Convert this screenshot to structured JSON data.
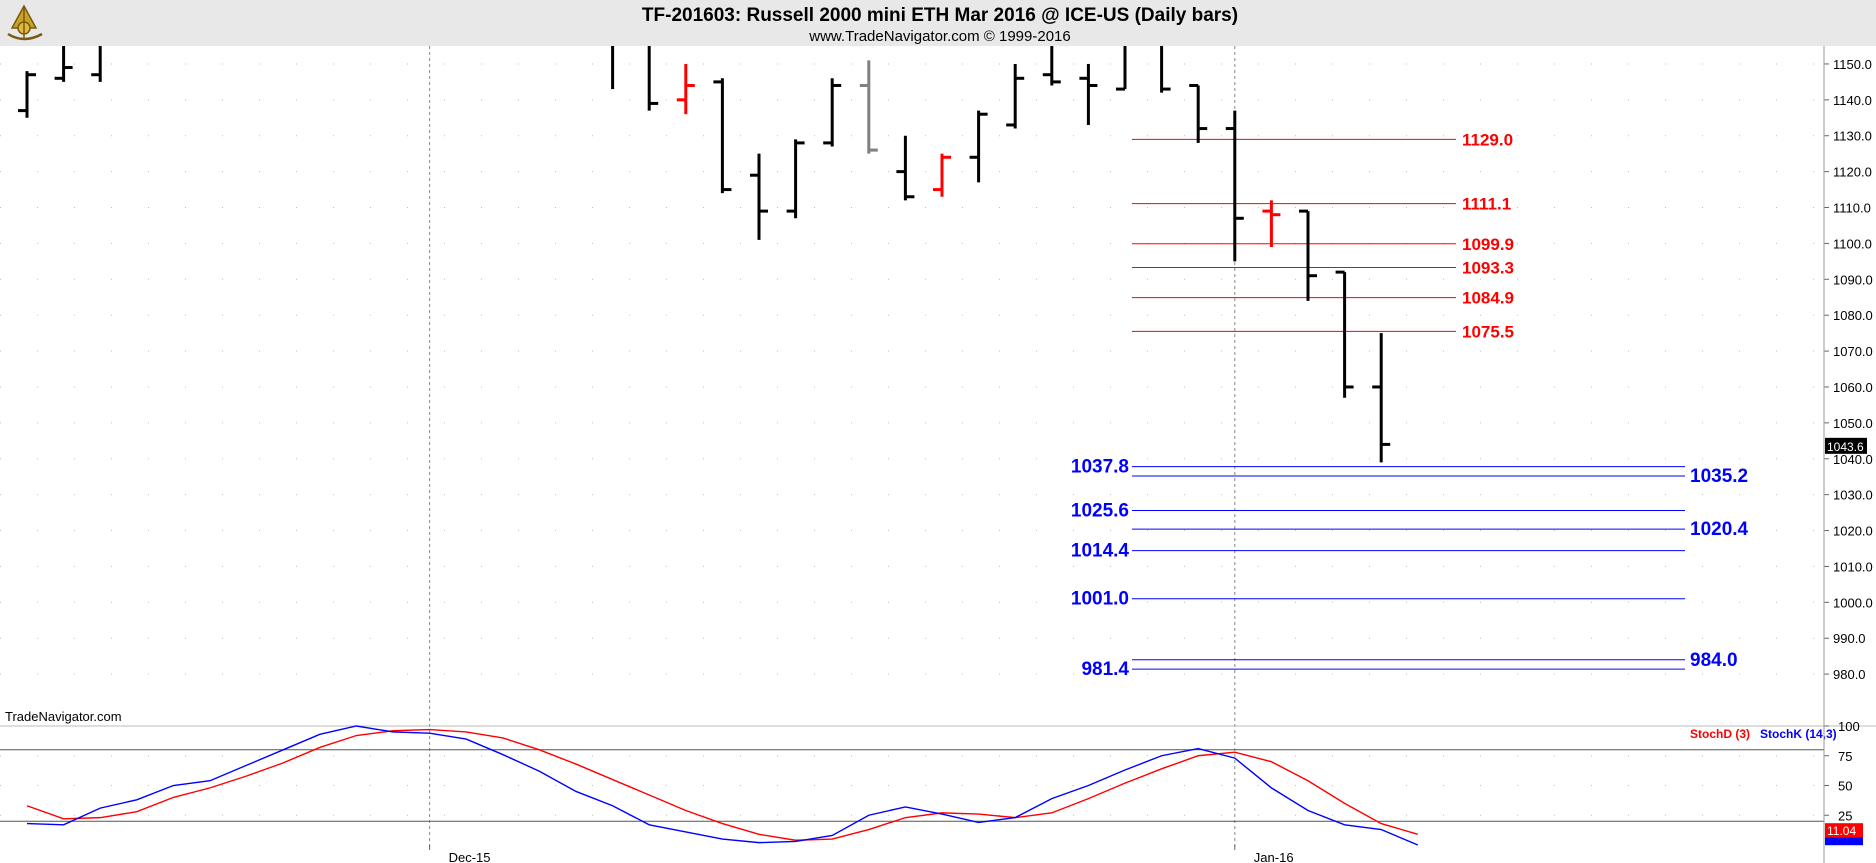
{
  "header": {
    "title": "TF-201603:  Russell 2000 mini ETH Mar 2016 @ ICE-US  (Daily bars)",
    "subtitle": "www.TradeNavigator.com © 1999-2016"
  },
  "watermark": "TradeNavigator.com",
  "colors": {
    "bar_default": "#000000",
    "bar_red": "#ff0000",
    "bar_gray": "#808080",
    "level_red": "#ff0000",
    "level_blue": "#0000ff",
    "stoch_d": "#ff0000",
    "stoch_k": "#0000ff",
    "header_bg": "#e8e8e8"
  },
  "chart_data": [
    {
      "type": "ohlc",
      "ylim": [
        970,
        1155
      ],
      "y_ticks": [
        980,
        990,
        1000,
        1010,
        1020,
        1030,
        1040,
        1050,
        1060,
        1070,
        1080,
        1090,
        1100,
        1110,
        1120,
        1130,
        1140,
        1150
      ],
      "y_tick_labels": [
        "980.0",
        "990.0",
        "1000.0",
        "1010.0",
        "1020.0",
        "1030.0",
        "1040.0",
        "1050.0",
        "1060.0",
        "1070.0",
        "1080.0",
        "1090.0",
        "1100.0",
        "1110.0",
        "1120.0",
        "1130.0",
        "1140.0",
        "1150.0"
      ],
      "x_tick_labels": [
        {
          "label": "Dec-15",
          "bar_index": 11
        },
        {
          "label": "Jan-16",
          "bar_index": 33
        }
      ],
      "last_price": {
        "value": 1043.6,
        "label": "1043.6"
      },
      "bars": [
        {
          "i": 0,
          "o": 1137,
          "h": 1148,
          "l": 1135,
          "c": 1147
        },
        {
          "i": 1,
          "o": 1146,
          "h": 1165,
          "l": 1145,
          "c": 1149
        },
        {
          "i": 2,
          "o": 1147,
          "h": 1158,
          "l": 1145,
          "c": 1157
        },
        {
          "i": 16,
          "o": 1158,
          "h": 1160,
          "l": 1143,
          "c": 1156
        },
        {
          "i": 17,
          "o": 1156,
          "h": 1156,
          "l": 1137,
          "c": 1139
        },
        {
          "i": 18,
          "o": 1140,
          "h": 1150,
          "l": 1136,
          "c": 1144,
          "color": "red"
        },
        {
          "i": 19,
          "o": 1145,
          "h": 1146,
          "l": 1114,
          "c": 1115
        },
        {
          "i": 20,
          "o": 1119,
          "h": 1125,
          "l": 1101,
          "c": 1109
        },
        {
          "i": 21,
          "o": 1109,
          "h": 1129,
          "l": 1107,
          "c": 1128
        },
        {
          "i": 22,
          "o": 1128,
          "h": 1146,
          "l": 1127,
          "c": 1144
        },
        {
          "i": 23,
          "o": 1144,
          "h": 1151,
          "l": 1125,
          "c": 1126,
          "color": "gray"
        },
        {
          "i": 24,
          "o": 1120,
          "h": 1130,
          "l": 1112,
          "c": 1113
        },
        {
          "i": 25,
          "o": 1115,
          "h": 1125,
          "l": 1113,
          "c": 1124,
          "color": "red"
        },
        {
          "i": 26,
          "o": 1124,
          "h": 1137,
          "l": 1117,
          "c": 1136
        },
        {
          "i": 27,
          "o": 1133,
          "h": 1150,
          "l": 1132,
          "c": 1146
        },
        {
          "i": 28,
          "o": 1147,
          "h": 1158,
          "l": 1144,
          "c": 1145
        },
        {
          "i": 29,
          "o": 1146,
          "h": 1150,
          "l": 1133,
          "c": 1144
        },
        {
          "i": 30,
          "o": 1143,
          "h": 1158,
          "l": 1143,
          "c": 1157
        },
        {
          "i": 31,
          "o": 1156,
          "h": 1156,
          "l": 1142,
          "c": 1143
        },
        {
          "i": 32,
          "o": 1144,
          "h": 1144,
          "l": 1128,
          "c": 1132
        },
        {
          "i": 33,
          "o": 1132,
          "h": 1137,
          "l": 1095,
          "c": 1107
        },
        {
          "i": 34,
          "o": 1109,
          "h": 1112,
          "l": 1099,
          "c": 1108,
          "color": "red"
        },
        {
          "i": 35,
          "o": 1109,
          "h": 1109,
          "l": 1084,
          "c": 1091
        },
        {
          "i": 36,
          "o": 1092,
          "h": 1092,
          "l": 1057,
          "c": 1060
        },
        {
          "i": 37,
          "o": 1060,
          "h": 1075,
          "l": 1039,
          "c": 1044
        }
      ],
      "levels_red": [
        {
          "value": 1129.0,
          "label": "1129.0"
        },
        {
          "value": 1111.1,
          "label": "1111.1"
        },
        {
          "value": 1099.9,
          "label": "1099.9"
        },
        {
          "value": 1093.3,
          "label": "1093.3"
        },
        {
          "value": 1084.9,
          "label": "1084.9"
        },
        {
          "value": 1075.5,
          "label": "1075.5"
        }
      ],
      "levels_blue_left": [
        {
          "value": 1037.8,
          "label": "1037.8"
        },
        {
          "value": 1025.6,
          "label": "1025.6"
        },
        {
          "value": 1014.4,
          "label": "1014.4"
        },
        {
          "value": 1001.0,
          "label": "1001.0"
        },
        {
          "value": 981.4,
          "label": "981.4"
        }
      ],
      "levels_blue_right": [
        {
          "value": 1035.2,
          "label": "1035.2"
        },
        {
          "value": 1020.4,
          "label": "1020.4"
        },
        {
          "value": 984.0,
          "label": "984.0"
        }
      ]
    },
    {
      "type": "line",
      "ylim": [
        0,
        100
      ],
      "y_ticks": [
        25,
        50,
        75,
        100
      ],
      "y_tick_labels": [
        "25",
        "50",
        "75",
        "100"
      ],
      "reference_lines": [
        20,
        80
      ],
      "legend": [
        "StochD (3)",
        "StochK (14,3)"
      ],
      "series": [
        {
          "name": "StochD (3)",
          "color": "#ff0000",
          "points": [
            [
              0,
              33
            ],
            [
              1,
              22
            ],
            [
              2,
              23
            ],
            [
              3,
              28
            ],
            [
              4,
              40
            ],
            [
              5,
              48
            ],
            [
              6,
              58
            ],
            [
              7,
              69
            ],
            [
              8,
              82
            ],
            [
              9,
              92
            ],
            [
              10,
              96
            ],
            [
              11,
              97
            ],
            [
              12,
              95
            ],
            [
              13,
              90
            ],
            [
              14,
              80
            ],
            [
              15,
              68
            ],
            [
              16,
              55
            ],
            [
              17,
              42
            ],
            [
              18,
              29
            ],
            [
              19,
              18
            ],
            [
              20,
              9
            ],
            [
              21,
              4
            ],
            [
              22,
              5
            ],
            [
              23,
              13
            ],
            [
              24,
              23
            ],
            [
              25,
              27
            ],
            [
              26,
              26
            ],
            [
              27,
              23
            ],
            [
              28,
              27
            ],
            [
              29,
              39
            ],
            [
              30,
              52
            ],
            [
              31,
              64
            ],
            [
              32,
              75
            ],
            [
              33,
              78
            ],
            [
              34,
              70
            ],
            [
              35,
              54
            ],
            [
              36,
              35
            ],
            [
              37,
              18
            ],
            [
              38,
              9
            ]
          ]
        },
        {
          "name": "StochK (14,3)",
          "color": "#0000ff",
          "points": [
            [
              0,
              18
            ],
            [
              1,
              17
            ],
            [
              2,
              31
            ],
            [
              3,
              38
            ],
            [
              4,
              50
            ],
            [
              5,
              54
            ],
            [
              6,
              67
            ],
            [
              7,
              80
            ],
            [
              8,
              93
            ],
            [
              9,
              100
            ],
            [
              10,
              95
            ],
            [
              11,
              94
            ],
            [
              12,
              89
            ],
            [
              13,
              76
            ],
            [
              14,
              62
            ],
            [
              15,
              45
            ],
            [
              16,
              33
            ],
            [
              17,
              17
            ],
            [
              18,
              11
            ],
            [
              19,
              5
            ],
            [
              20,
              2
            ],
            [
              21,
              3
            ],
            [
              22,
              8
            ],
            [
              23,
              25
            ],
            [
              24,
              32
            ],
            [
              25,
              26
            ],
            [
              26,
              19
            ],
            [
              27,
              23
            ],
            [
              28,
              39
            ],
            [
              29,
              50
            ],
            [
              30,
              63
            ],
            [
              31,
              75
            ],
            [
              32,
              81
            ],
            [
              33,
              73
            ],
            [
              34,
              48
            ],
            [
              35,
              29
            ],
            [
              36,
              17
            ],
            [
              37,
              13
            ],
            [
              38,
              0
            ]
          ]
        }
      ],
      "last_value": {
        "value": 11.04,
        "label": "11.04"
      }
    }
  ]
}
